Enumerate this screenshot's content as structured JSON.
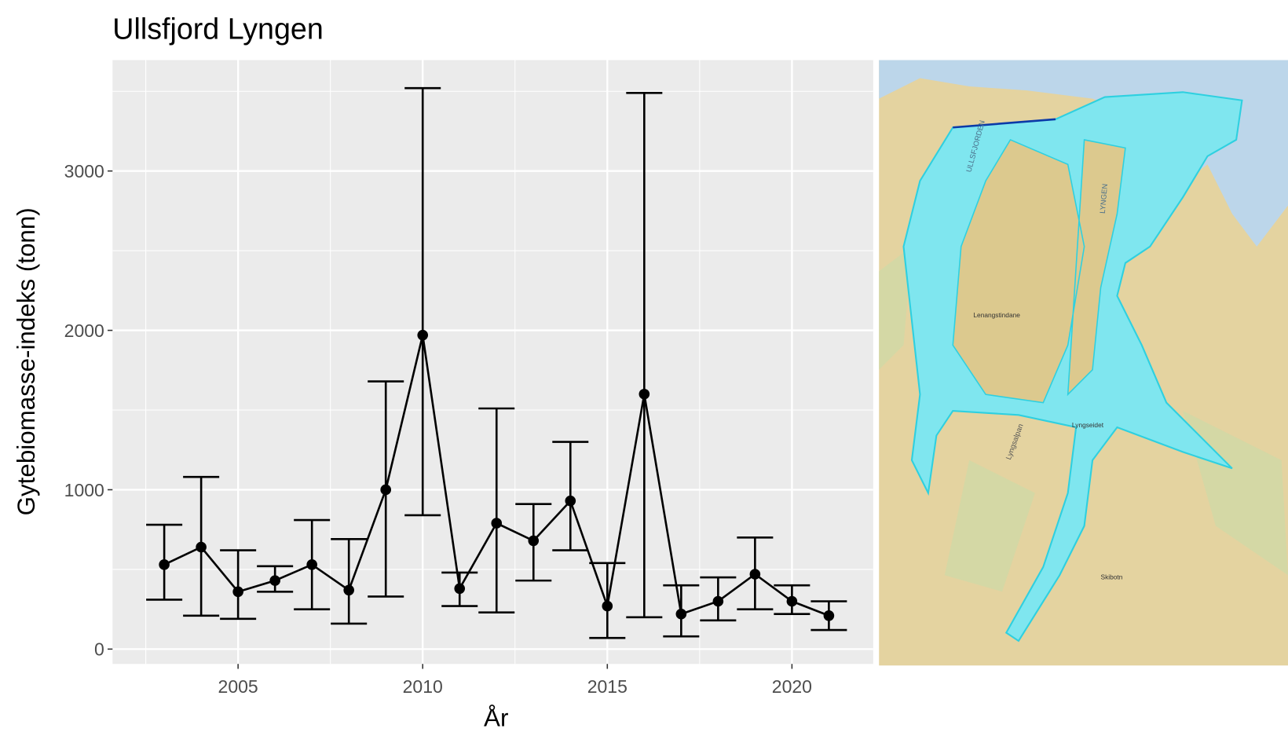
{
  "chart_data": {
    "type": "errorbar-line",
    "title": "Ullsfjord Lyngen",
    "x_label": "År",
    "y_label": "Gytebiomasse-indeks (tonn)",
    "x": [
      2003,
      2004,
      2005,
      2006,
      2007,
      2008,
      2009,
      2010,
      2011,
      2012,
      2013,
      2014,
      2015,
      2016,
      2017,
      2018,
      2019,
      2020,
      2021
    ],
    "series": [
      {
        "color": "#000000",
        "values": [
          530,
          640,
          360,
          430,
          530,
          370,
          1000,
          1970,
          380,
          790,
          680,
          930,
          270,
          1600,
          220,
          300,
          470,
          300,
          210
        ],
        "lower": [
          310,
          210,
          190,
          360,
          250,
          160,
          330,
          840,
          270,
          230,
          430,
          620,
          70,
          200,
          80,
          180,
          250,
          220,
          120
        ],
        "upper": [
          780,
          1080,
          620,
          520,
          810,
          690,
          1680,
          3520,
          480,
          1510,
          910,
          1300,
          540,
          3490,
          400,
          450,
          700,
          400,
          300
        ]
      }
    ],
    "xlim": [
      2001.6,
      2022.2
    ],
    "ylim": [
      -93,
      3696
    ],
    "xticks": [
      2005,
      2010,
      2015,
      2020
    ],
    "yticks": [
      0,
      1000,
      2000,
      3000
    ],
    "grid": true
  },
  "map": {
    "labels": [
      "ULLSFJORDEN",
      "LYNGEN",
      "Lenangstindane",
      "Lyngseidet",
      "Skibotn",
      "Lyngsalpan"
    ]
  }
}
